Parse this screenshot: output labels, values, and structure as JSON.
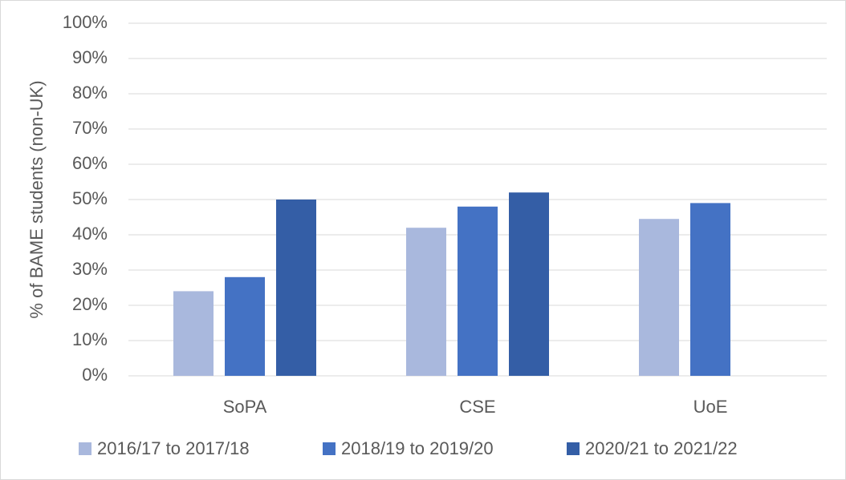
{
  "chart_data": {
    "type": "bar",
    "y_label": "% of BAME students (non-UK)",
    "categories": [
      "SoPA",
      "CSE",
      "UoE"
    ],
    "series": [
      {
        "name": "2016/17 to 2017/18",
        "color": "#a9b8dd",
        "values": [
          24,
          42,
          44.5
        ]
      },
      {
        "name": "2018/19 to 2019/20",
        "color": "#4472c4",
        "values": [
          28,
          48,
          49
        ]
      },
      {
        "name": "2020/21 to 2021/22",
        "color": "#345ea6",
        "values": [
          50,
          52,
          null
        ]
      }
    ],
    "ylim": [
      0,
      100
    ],
    "yticks": [
      {
        "value": 0,
        "label": "0%"
      },
      {
        "value": 10,
        "label": "10%"
      },
      {
        "value": 20,
        "label": "20%"
      },
      {
        "value": 30,
        "label": "30%"
      },
      {
        "value": 40,
        "label": "40%"
      },
      {
        "value": 50,
        "label": "50%"
      },
      {
        "value": 60,
        "label": "60%"
      },
      {
        "value": 70,
        "label": "70%"
      },
      {
        "value": 80,
        "label": "80%"
      },
      {
        "value": 90,
        "label": "90%"
      },
      {
        "value": 100,
        "label": "100%"
      }
    ],
    "grid": true,
    "legend": "bottom"
  }
}
